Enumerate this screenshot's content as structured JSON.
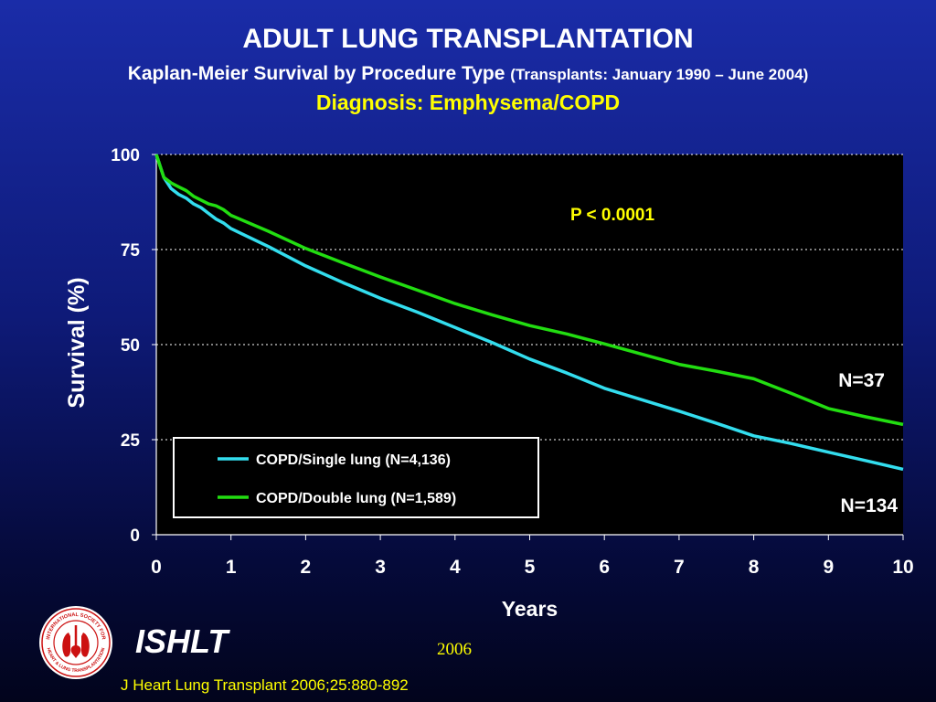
{
  "header": {
    "title": "ADULT LUNG TRANSPLANTATION",
    "subtitle_main": "Kaplan-Meier Survival by Procedure Type",
    "subtitle_paren": "(Transplants: January 1990 – June 2004)",
    "diagnosis": "Diagnosis: Emphysema/COPD"
  },
  "chart_data": {
    "type": "line",
    "xlabel": "Years",
    "ylabel": "Survival (%)",
    "xlim": [
      0,
      10
    ],
    "ylim": [
      0,
      100
    ],
    "x_ticks": [
      "0",
      "1",
      "2",
      "3",
      "4",
      "5",
      "6",
      "7",
      "8",
      "9",
      "10"
    ],
    "y_ticks": [
      "100",
      "75",
      "50",
      "25",
      "0"
    ],
    "grid": "horizontal dotted",
    "legend_position": "lower-left",
    "annotations": {
      "p_value": "P < 0.0001",
      "n_double_end": "N=37",
      "n_single_end": "N=134"
    },
    "colors": {
      "plot_background": "#000000",
      "single_lung": "#33ddee",
      "double_lung": "#22dd11",
      "annotation": "#ffff00"
    },
    "series": [
      {
        "name": "COPD/Single lung (N=4,136)",
        "x": [
          0,
          0.05,
          0.1,
          0.2,
          0.3,
          0.4,
          0.5,
          0.6,
          0.7,
          0.8,
          0.9,
          1,
          1.5,
          2,
          2.5,
          3,
          3.5,
          4,
          4.5,
          5,
          5.5,
          6,
          6.5,
          7,
          7.5,
          8,
          8.5,
          9,
          9.5,
          10
        ],
        "y": [
          100,
          97,
          94,
          91,
          89.5,
          88.5,
          87,
          86,
          84.5,
          83,
          82,
          80.5,
          75.8,
          70.7,
          66.3,
          62.2,
          58.5,
          54.5,
          50.5,
          46.2,
          42.5,
          38.5,
          35.5,
          32.5,
          29.3,
          26,
          24,
          21.7,
          19.5,
          17.2
        ]
      },
      {
        "name": "COPD/Double lung (N=1,589)",
        "x": [
          0,
          0.05,
          0.1,
          0.2,
          0.3,
          0.4,
          0.5,
          0.6,
          0.7,
          0.8,
          0.9,
          1,
          1.5,
          2,
          2.5,
          3,
          3.5,
          4,
          4.5,
          5,
          5.5,
          6,
          6.5,
          7,
          7.5,
          8,
          8.5,
          9,
          9.5,
          10
        ],
        "y": [
          100,
          97,
          94,
          92.5,
          91.5,
          90.5,
          89,
          88,
          87,
          86.5,
          85.5,
          84,
          79.8,
          75.3,
          71.5,
          67.8,
          64.3,
          60.8,
          57.8,
          55,
          52.8,
          50.2,
          47.5,
          44.8,
          43,
          41,
          37.2,
          33.2,
          31,
          29
        ]
      }
    ]
  },
  "footer": {
    "logo_text_top": "INTERNATIONAL SOCIETY FOR",
    "logo_text_bottom": "HEART & LUNG TRANSPLANTATION",
    "org": "ISHLT",
    "year": "2006",
    "citation": "J Heart Lung Transplant 2006;25:880-892"
  }
}
